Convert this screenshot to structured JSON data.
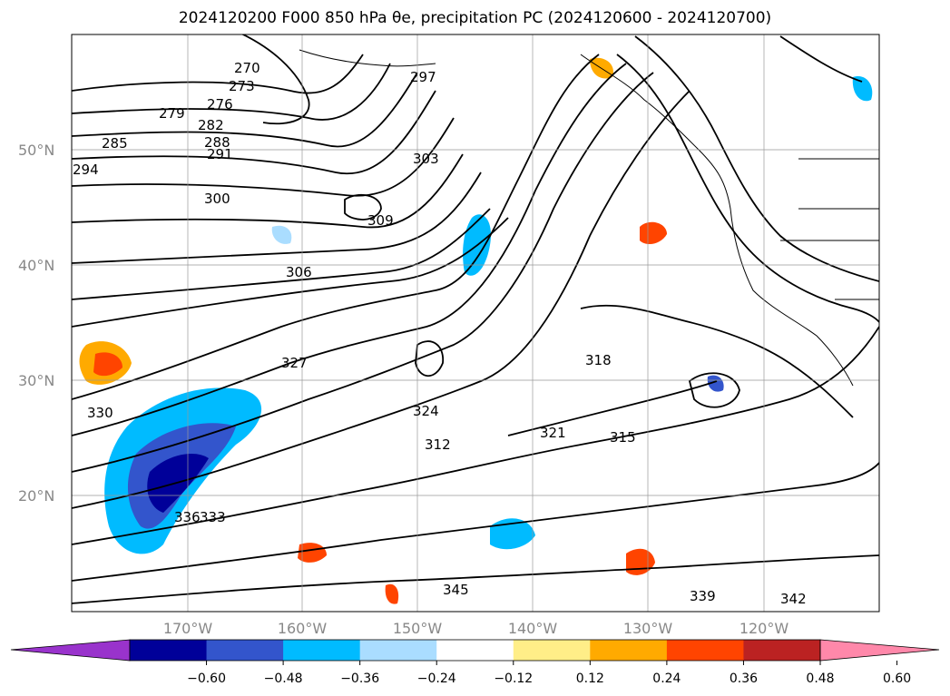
{
  "title": "2024120200 F000 850 hPa θe, precipitation PC (2024120600 - 2024120700)",
  "map": {
    "lat_labels": [
      "50°N",
      "40°N",
      "30°N",
      "20°N"
    ],
    "lon_labels": [
      "170°W",
      "160°W",
      "150°W",
      "140°W",
      "130°W",
      "120°W"
    ],
    "contour_labels": [
      "270",
      "273",
      "276",
      "279",
      "282",
      "285",
      "288",
      "291",
      "294",
      "297",
      "300",
      "303",
      "306",
      "309",
      "312",
      "315",
      "318",
      "321",
      "324",
      "327",
      "330",
      "333",
      "336",
      "339",
      "342",
      "345"
    ]
  },
  "colorbar": {
    "ticks": [
      "−0.60",
      "−0.48",
      "−0.36",
      "−0.24",
      "−0.12",
      "0.12",
      "0.24",
      "0.36",
      "0.48",
      "0.60"
    ],
    "colors": [
      "#9933cc",
      "#000099",
      "#3355cc",
      "#00bbff",
      "#aaddff",
      "#ffffff",
      "#ffee88",
      "#ffaa00",
      "#ff4400",
      "#bb2222",
      "#ff88aa"
    ],
    "under_color": "#9933cc",
    "over_color": "#ff88aa"
  },
  "contour_color": "#000000",
  "grid_color": "#999999"
}
